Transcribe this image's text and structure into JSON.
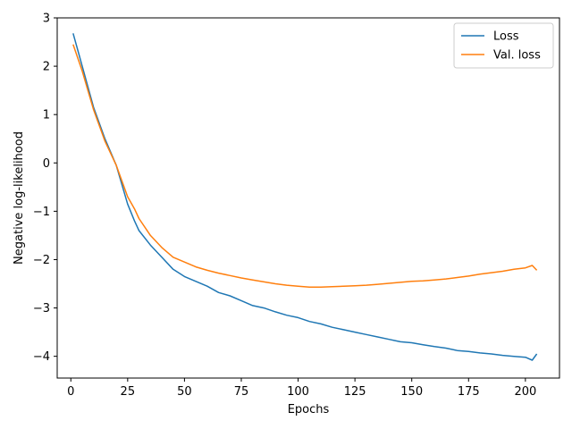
{
  "chart_data": {
    "type": "line",
    "xlabel": "Epochs",
    "ylabel": "Negative log-likelihood",
    "xlim": [
      -6,
      215
    ],
    "ylim": [
      -4.45,
      3
    ],
    "xticks": [
      0,
      25,
      50,
      75,
      100,
      125,
      150,
      175,
      200
    ],
    "yticks": [
      3,
      2,
      1,
      0,
      -1,
      -2,
      -3,
      -4
    ],
    "legend_position": "top-right",
    "grid": false,
    "series": [
      {
        "name": "Loss",
        "color": "#1f77b4",
        "x": [
          1,
          5,
          10,
          15,
          20,
          25,
          28,
          30,
          35,
          40,
          45,
          50,
          55,
          60,
          65,
          70,
          75,
          80,
          85,
          90,
          95,
          100,
          105,
          110,
          115,
          120,
          125,
          130,
          135,
          140,
          145,
          150,
          155,
          160,
          165,
          170,
          175,
          180,
          185,
          190,
          195,
          200,
          203,
          205
        ],
        "y": [
          2.68,
          2.0,
          1.15,
          0.5,
          -0.05,
          -0.85,
          -1.2,
          -1.4,
          -1.7,
          -1.95,
          -2.2,
          -2.35,
          -2.45,
          -2.55,
          -2.68,
          -2.75,
          -2.85,
          -2.95,
          -3.0,
          -3.08,
          -3.15,
          -3.2,
          -3.28,
          -3.33,
          -3.4,
          -3.45,
          -3.5,
          -3.55,
          -3.6,
          -3.65,
          -3.7,
          -3.72,
          -3.76,
          -3.8,
          -3.83,
          -3.88,
          -3.9,
          -3.93,
          -3.95,
          -3.98,
          -4.0,
          -4.02,
          -4.08,
          -3.95
        ]
      },
      {
        "name": "Val. loss",
        "color": "#ff7f0e",
        "x": [
          1,
          5,
          10,
          15,
          20,
          25,
          28,
          30,
          35,
          40,
          45,
          50,
          55,
          60,
          65,
          70,
          75,
          80,
          85,
          90,
          95,
          100,
          105,
          110,
          115,
          120,
          125,
          130,
          135,
          140,
          145,
          150,
          155,
          160,
          165,
          170,
          175,
          180,
          185,
          190,
          195,
          200,
          203,
          205
        ],
        "y": [
          2.45,
          1.9,
          1.1,
          0.45,
          -0.05,
          -0.7,
          -0.95,
          -1.15,
          -1.5,
          -1.75,
          -1.95,
          -2.05,
          -2.15,
          -2.22,
          -2.28,
          -2.33,
          -2.38,
          -2.42,
          -2.46,
          -2.5,
          -2.53,
          -2.55,
          -2.57,
          -2.57,
          -2.56,
          -2.55,
          -2.54,
          -2.53,
          -2.51,
          -2.49,
          -2.47,
          -2.45,
          -2.44,
          -2.42,
          -2.4,
          -2.37,
          -2.34,
          -2.3,
          -2.27,
          -2.24,
          -2.2,
          -2.17,
          -2.12,
          -2.22
        ]
      }
    ]
  }
}
